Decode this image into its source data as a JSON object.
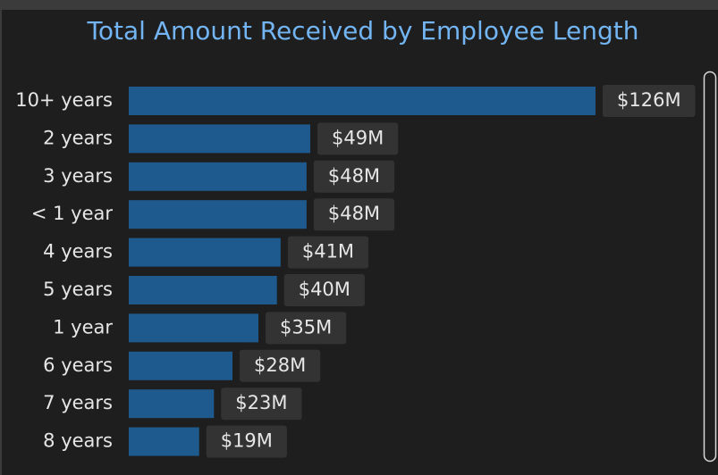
{
  "chart_data": {
    "type": "bar",
    "orientation": "horizontal",
    "title": "Total Amount Received by Employee Length",
    "categories": [
      "10+ years",
      "2 years",
      "3 years",
      "< 1 year",
      "4 years",
      "5 years",
      "1 year",
      "6 years",
      "7 years",
      "8 years"
    ],
    "values": [
      126,
      49,
      48,
      48,
      41,
      40,
      35,
      28,
      23,
      19
    ],
    "value_labels": [
      "$126M",
      "$49M",
      "$48M",
      "$48M",
      "$41M",
      "$40M",
      "$35M",
      "$28M",
      "$23M",
      "$19M"
    ],
    "color": "#1f5a8e"
  }
}
